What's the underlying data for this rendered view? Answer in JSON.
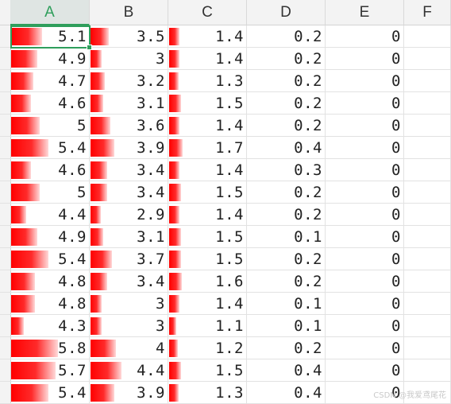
{
  "columns": [
    "A",
    "B",
    "C",
    "D",
    "E",
    "F"
  ],
  "active_column": "A",
  "databar_color": "#ff0000",
  "selection_color": "#2e9e5b",
  "rows": [
    [
      "5.1",
      "3.5",
      "1.4",
      "0.2",
      "0"
    ],
    [
      "4.9",
      "3",
      "1.4",
      "0.2",
      "0"
    ],
    [
      "4.7",
      "3.2",
      "1.3",
      "0.2",
      "0"
    ],
    [
      "4.6",
      "3.1",
      "1.5",
      "0.2",
      "0"
    ],
    [
      "5",
      "3.6",
      "1.4",
      "0.2",
      "0"
    ],
    [
      "5.4",
      "3.9",
      "1.7",
      "0.4",
      "0"
    ],
    [
      "4.6",
      "3.4",
      "1.4",
      "0.3",
      "0"
    ],
    [
      "5",
      "3.4",
      "1.5",
      "0.2",
      "0"
    ],
    [
      "4.4",
      "2.9",
      "1.4",
      "0.2",
      "0"
    ],
    [
      "4.9",
      "3.1",
      "1.5",
      "0.1",
      "0"
    ],
    [
      "5.4",
      "3.7",
      "1.5",
      "0.2",
      "0"
    ],
    [
      "4.8",
      "3.4",
      "1.6",
      "0.2",
      "0"
    ],
    [
      "4.8",
      "3",
      "1.4",
      "0.1",
      "0"
    ],
    [
      "4.3",
      "3",
      "1.1",
      "0.1",
      "0"
    ],
    [
      "5.8",
      "4",
      "1.2",
      "0.2",
      "0"
    ],
    [
      "5.7",
      "4.4",
      "1.5",
      "0.4",
      "0"
    ],
    [
      "5.4",
      "3.9",
      "1.3",
      "0.4",
      "0"
    ]
  ],
  "watermark": "CSDN @我爱鸢尾花"
}
